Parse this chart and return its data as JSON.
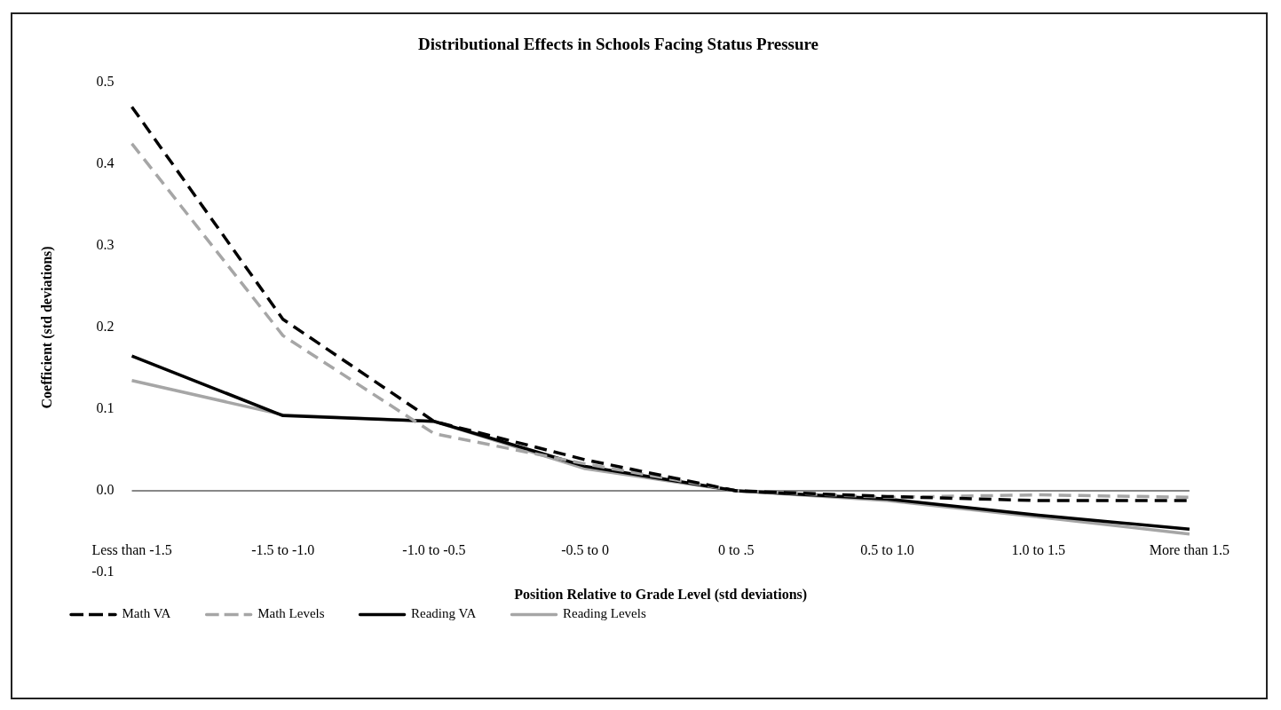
{
  "chart_data": {
    "type": "line",
    "title": "Distributional Effects in Schools Facing Status Pressure",
    "xlabel": "Position Relative to Grade Level (std deviations)",
    "ylabel": "Coefficient (std deviations)",
    "categories": [
      "Less than -1.5",
      "-1.5 to -1.0",
      "-1.0 to -0.5",
      "-0.5 to 0",
      "0 to .5",
      "0.5 to 1.0",
      "1.0 to 1.5",
      "More than 1.5"
    ],
    "series": [
      {
        "name": "Math VA",
        "color": "#000000",
        "line_style": "dashed",
        "values": [
          0.47,
          0.21,
          0.085,
          0.038,
          0,
          -0.007,
          -0.012,
          -0.012
        ]
      },
      {
        "name": "Math Levels",
        "color": "#a6a6a6",
        "line_style": "dashed",
        "values": [
          0.425,
          0.19,
          0.07,
          0.033,
          0,
          -0.008,
          -0.005,
          -0.008
        ]
      },
      {
        "name": "Reading VA",
        "color": "#000000",
        "line_style": "solid",
        "values": [
          0.165,
          0.092,
          0.085,
          0.03,
          0,
          -0.01,
          -0.03,
          -0.047
        ]
      },
      {
        "name": "Reading Levels",
        "color": "#a6a6a6",
        "line_style": "solid",
        "values": [
          0.135,
          0.093,
          0.085,
          0.027,
          0,
          -0.012,
          -0.032,
          -0.053
        ]
      }
    ],
    "ylim": [
      -0.1,
      0.5
    ],
    "yticks": [
      {
        "value": -0.1,
        "label": "-0.1"
      },
      {
        "value": 0,
        "label": "0.0"
      },
      {
        "value": 0.1,
        "label": "0.1"
      },
      {
        "value": 0.2,
        "label": "0.2"
      },
      {
        "value": 0.3,
        "label": "0.3"
      },
      {
        "value": 0.4,
        "label": "0.4"
      },
      {
        "value": 0.5,
        "label": "0.5"
      }
    ],
    "ref_lines": [
      {
        "axis": "y",
        "value": 0,
        "color": "#888888"
      }
    ],
    "grid": false,
    "legend": "bottom left",
    "marker": "none"
  }
}
